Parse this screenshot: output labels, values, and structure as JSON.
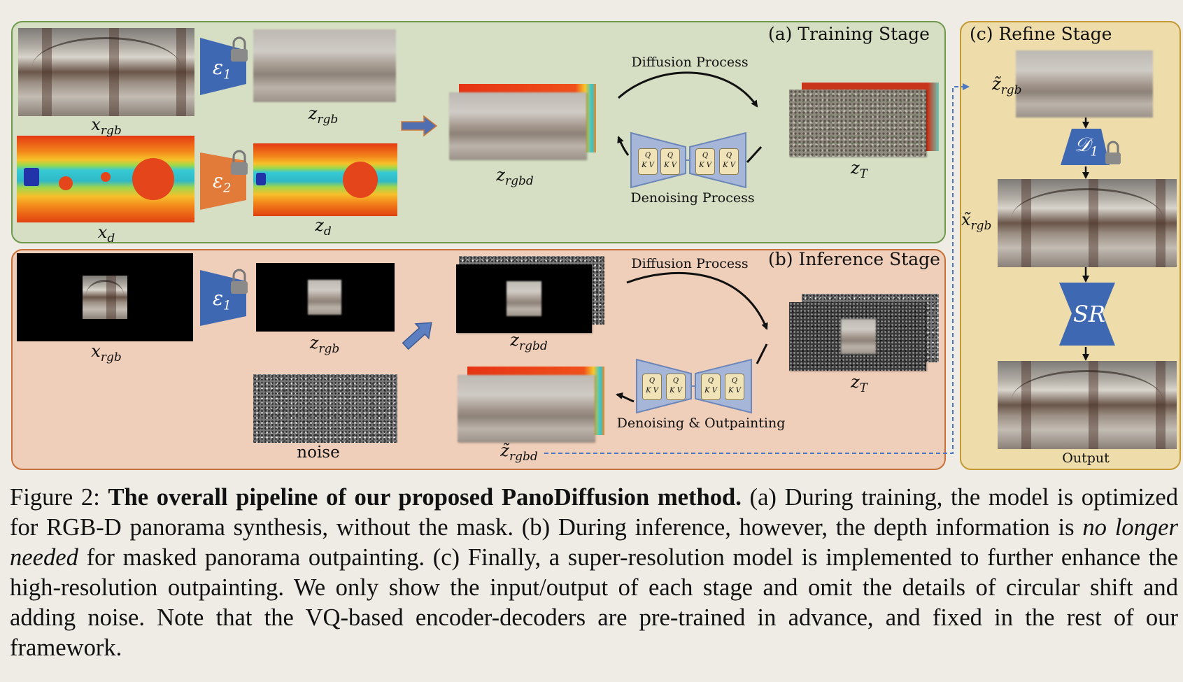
{
  "stages": {
    "training": "(a) Training Stage",
    "inference": "(b) Inference Stage",
    "refine": "(c) Refine Stage"
  },
  "labels": {
    "a_x_rgb": {
      "base": "x",
      "sub": "rgb"
    },
    "a_z_rgb": {
      "base": "z",
      "sub": "rgb"
    },
    "a_x_d": {
      "base": "x",
      "sub": "d"
    },
    "a_z_d": {
      "base": "z",
      "sub": "d"
    },
    "a_z_rgbd": {
      "base": "z",
      "sub": "rgbd"
    },
    "a_z_T": {
      "base": "z",
      "sub": "T"
    },
    "b_x_rgb": {
      "base": "x",
      "sub": "rgb"
    },
    "b_z_rgb": {
      "base": "z",
      "sub": "rgb"
    },
    "b_z_rgbd": {
      "base": "z",
      "sub": "rgbd"
    },
    "b_z_T": {
      "base": "z",
      "sub": "T"
    },
    "b_zt_rgbd": {
      "base": "z̃",
      "sub": "rgbd"
    },
    "c_zt_rgb": {
      "base": "z̃",
      "sub": "rgb"
    },
    "c_xt_rgb": {
      "base": "x̃",
      "sub": "rgb"
    },
    "noise": "noise",
    "output": "Output"
  },
  "encoders": {
    "e1": {
      "base": "ε",
      "sub": "1"
    },
    "e2": {
      "base": "ε",
      "sub": "2"
    },
    "d1": {
      "base": "𝒟",
      "sub": "1"
    },
    "sr": "SR"
  },
  "processes": {
    "a_diffusion": "Diffusion Process",
    "a_denoising": "Denoising Process",
    "b_diffusion": "Diffusion Process",
    "b_denoising": "Denoising & Outpainting"
  },
  "attention": {
    "q": "Q",
    "kv": "K V"
  },
  "colors": {
    "training_bg": "#d6dfc4",
    "inference_bg": "#efcfba",
    "refine_bg": "#eedcab",
    "encoder_blue": "#3f68b3",
    "encoder_orange": "#e27a3a",
    "arrow_dashed": "#4c78c2"
  },
  "caption": {
    "prefix": "Figure 2: ",
    "bold": "The overall pipeline of our proposed PanoDiffusion method.",
    "part1": " (a) During training, the model is optimized for RGB-D panorama synthesis, without the mask. (b) During inference, however, the depth information is ",
    "italic": "no longer needed",
    "part2": " for masked panorama outpainting. (c) Finally, a super-resolution model is implemented to further enhance the high-resolution outpainting. We only show the input/output of each stage and omit the details of circular shift and adding noise. Note that the VQ-based encoder-decoders are pre-trained in advance, and fixed in the rest of our framework."
  }
}
